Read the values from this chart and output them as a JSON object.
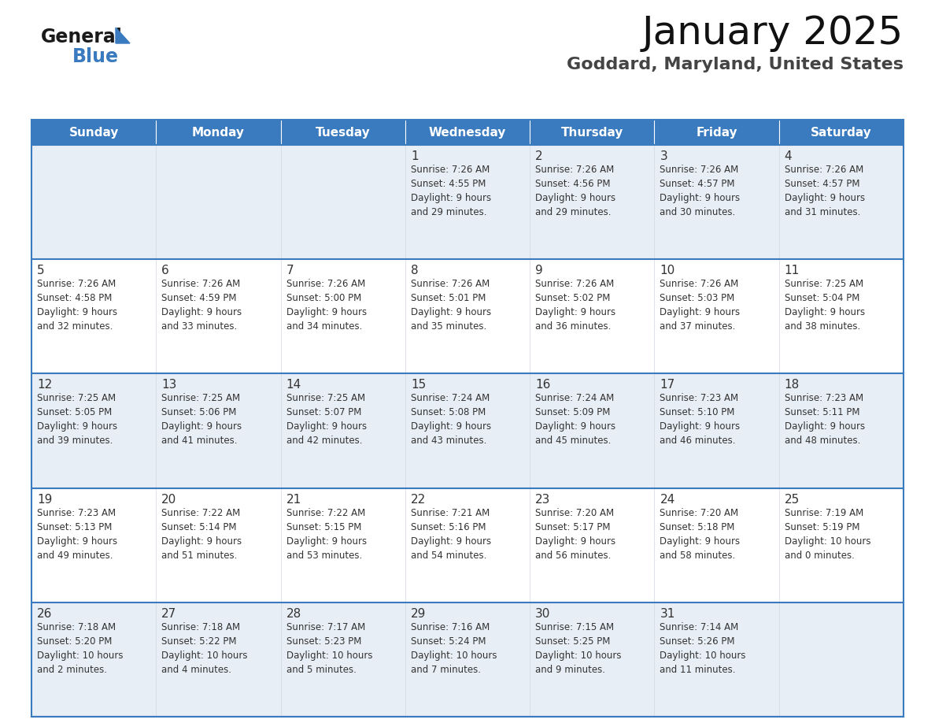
{
  "title": "January 2025",
  "subtitle": "Goddard, Maryland, United States",
  "header_color": "#3a7abf",
  "header_text_color": "#ffffff",
  "row0_bg": "#e8eef5",
  "row1_bg": "#ffffff",
  "border_color": "#3a7abf",
  "cell_border_color": "#c0c8d0",
  "text_color": "#333333",
  "days_of_week": [
    "Sunday",
    "Monday",
    "Tuesday",
    "Wednesday",
    "Thursday",
    "Friday",
    "Saturday"
  ],
  "weeks": [
    [
      {
        "day": "",
        "info": ""
      },
      {
        "day": "",
        "info": ""
      },
      {
        "day": "",
        "info": ""
      },
      {
        "day": "1",
        "info": "Sunrise: 7:26 AM\nSunset: 4:55 PM\nDaylight: 9 hours\nand 29 minutes."
      },
      {
        "day": "2",
        "info": "Sunrise: 7:26 AM\nSunset: 4:56 PM\nDaylight: 9 hours\nand 29 minutes."
      },
      {
        "day": "3",
        "info": "Sunrise: 7:26 AM\nSunset: 4:57 PM\nDaylight: 9 hours\nand 30 minutes."
      },
      {
        "day": "4",
        "info": "Sunrise: 7:26 AM\nSunset: 4:57 PM\nDaylight: 9 hours\nand 31 minutes."
      }
    ],
    [
      {
        "day": "5",
        "info": "Sunrise: 7:26 AM\nSunset: 4:58 PM\nDaylight: 9 hours\nand 32 minutes."
      },
      {
        "day": "6",
        "info": "Sunrise: 7:26 AM\nSunset: 4:59 PM\nDaylight: 9 hours\nand 33 minutes."
      },
      {
        "day": "7",
        "info": "Sunrise: 7:26 AM\nSunset: 5:00 PM\nDaylight: 9 hours\nand 34 minutes."
      },
      {
        "day": "8",
        "info": "Sunrise: 7:26 AM\nSunset: 5:01 PM\nDaylight: 9 hours\nand 35 minutes."
      },
      {
        "day": "9",
        "info": "Sunrise: 7:26 AM\nSunset: 5:02 PM\nDaylight: 9 hours\nand 36 minutes."
      },
      {
        "day": "10",
        "info": "Sunrise: 7:26 AM\nSunset: 5:03 PM\nDaylight: 9 hours\nand 37 minutes."
      },
      {
        "day": "11",
        "info": "Sunrise: 7:25 AM\nSunset: 5:04 PM\nDaylight: 9 hours\nand 38 minutes."
      }
    ],
    [
      {
        "day": "12",
        "info": "Sunrise: 7:25 AM\nSunset: 5:05 PM\nDaylight: 9 hours\nand 39 minutes."
      },
      {
        "day": "13",
        "info": "Sunrise: 7:25 AM\nSunset: 5:06 PM\nDaylight: 9 hours\nand 41 minutes."
      },
      {
        "day": "14",
        "info": "Sunrise: 7:25 AM\nSunset: 5:07 PM\nDaylight: 9 hours\nand 42 minutes."
      },
      {
        "day": "15",
        "info": "Sunrise: 7:24 AM\nSunset: 5:08 PM\nDaylight: 9 hours\nand 43 minutes."
      },
      {
        "day": "16",
        "info": "Sunrise: 7:24 AM\nSunset: 5:09 PM\nDaylight: 9 hours\nand 45 minutes."
      },
      {
        "day": "17",
        "info": "Sunrise: 7:23 AM\nSunset: 5:10 PM\nDaylight: 9 hours\nand 46 minutes."
      },
      {
        "day": "18",
        "info": "Sunrise: 7:23 AM\nSunset: 5:11 PM\nDaylight: 9 hours\nand 48 minutes."
      }
    ],
    [
      {
        "day": "19",
        "info": "Sunrise: 7:23 AM\nSunset: 5:13 PM\nDaylight: 9 hours\nand 49 minutes."
      },
      {
        "day": "20",
        "info": "Sunrise: 7:22 AM\nSunset: 5:14 PM\nDaylight: 9 hours\nand 51 minutes."
      },
      {
        "day": "21",
        "info": "Sunrise: 7:22 AM\nSunset: 5:15 PM\nDaylight: 9 hours\nand 53 minutes."
      },
      {
        "day": "22",
        "info": "Sunrise: 7:21 AM\nSunset: 5:16 PM\nDaylight: 9 hours\nand 54 minutes."
      },
      {
        "day": "23",
        "info": "Sunrise: 7:20 AM\nSunset: 5:17 PM\nDaylight: 9 hours\nand 56 minutes."
      },
      {
        "day": "24",
        "info": "Sunrise: 7:20 AM\nSunset: 5:18 PM\nDaylight: 9 hours\nand 58 minutes."
      },
      {
        "day": "25",
        "info": "Sunrise: 7:19 AM\nSunset: 5:19 PM\nDaylight: 10 hours\nand 0 minutes."
      }
    ],
    [
      {
        "day": "26",
        "info": "Sunrise: 7:18 AM\nSunset: 5:20 PM\nDaylight: 10 hours\nand 2 minutes."
      },
      {
        "day": "27",
        "info": "Sunrise: 7:18 AM\nSunset: 5:22 PM\nDaylight: 10 hours\nand 4 minutes."
      },
      {
        "day": "28",
        "info": "Sunrise: 7:17 AM\nSunset: 5:23 PM\nDaylight: 10 hours\nand 5 minutes."
      },
      {
        "day": "29",
        "info": "Sunrise: 7:16 AM\nSunset: 5:24 PM\nDaylight: 10 hours\nand 7 minutes."
      },
      {
        "day": "30",
        "info": "Sunrise: 7:15 AM\nSunset: 5:25 PM\nDaylight: 10 hours\nand 9 minutes."
      },
      {
        "day": "31",
        "info": "Sunrise: 7:14 AM\nSunset: 5:26 PM\nDaylight: 10 hours\nand 11 minutes."
      },
      {
        "day": "",
        "info": ""
      }
    ]
  ],
  "logo_text_general": "General",
  "logo_text_blue": "Blue",
  "logo_triangle_color": "#3a7abf",
  "logo_general_color": "#1a1a1a",
  "title_fontsize": 36,
  "subtitle_fontsize": 16,
  "header_fontsize": 11,
  "day_num_fontsize": 11,
  "info_fontsize": 8.5
}
